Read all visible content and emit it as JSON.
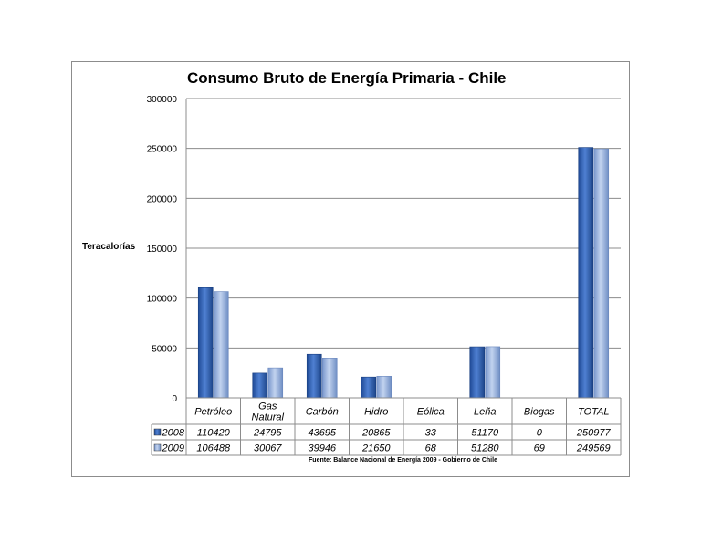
{
  "chart_data": {
    "type": "bar",
    "title": "Consumo Bruto de Energía Primaria - Chile",
    "ylabel": "Teracalorías",
    "xlabel": "",
    "ylim": [
      0,
      300000
    ],
    "yticks": [
      0,
      50000,
      100000,
      150000,
      200000,
      250000,
      300000
    ],
    "categories": [
      [
        "Petróleo"
      ],
      [
        "Gas",
        "Natural"
      ],
      [
        "Carbón"
      ],
      [
        "Hidro"
      ],
      [
        "Eólica"
      ],
      [
        "Leña"
      ],
      [
        "Biogas"
      ],
      [
        "TOTAL"
      ]
    ],
    "series": [
      {
        "name": "2008",
        "color": "#2e5fb0",
        "values": [
          110420,
          24795,
          43695,
          20865,
          33,
          51170,
          0,
          250977
        ]
      },
      {
        "name": "2009",
        "color": "#8da9dc",
        "values": [
          106488,
          30067,
          39946,
          21650,
          68,
          51280,
          69,
          249569
        ]
      }
    ],
    "grid": true,
    "legend": "data-table",
    "source": "Fuente: Balance Nacional de Energía 2009 - Gobierno de Chile"
  }
}
